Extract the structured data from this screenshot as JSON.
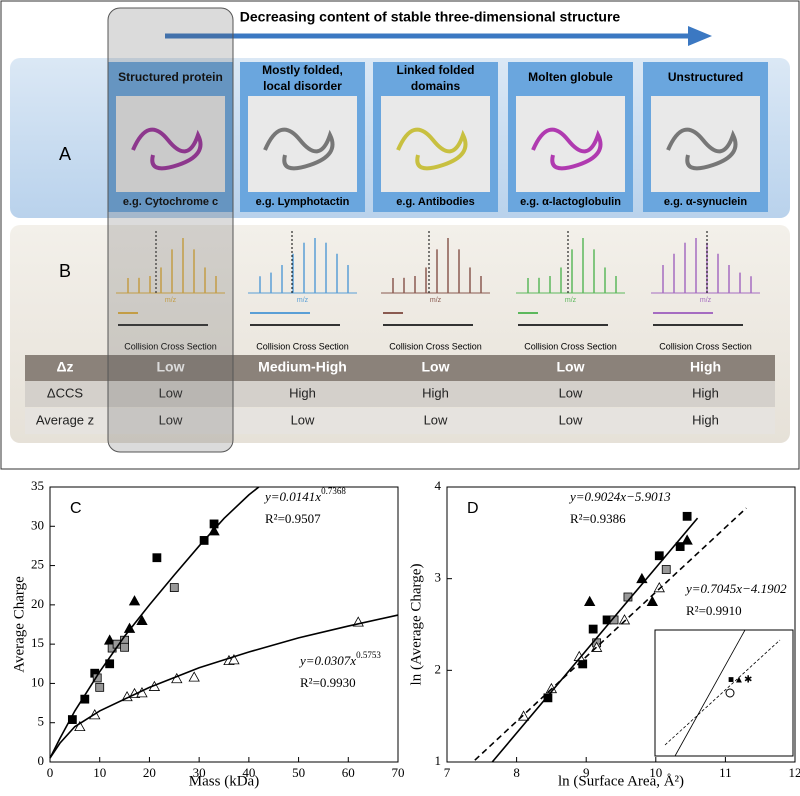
{
  "header": {
    "arrow_text": "Decreasing content of stable three-dimensional structure"
  },
  "panel_a": {
    "label": "A",
    "columns": [
      {
        "title": "Structured protein",
        "example": "e.g. Cytochrome c"
      },
      {
        "title": "Mostly folded, local disorder",
        "example": "e.g. Lymphotactin"
      },
      {
        "title": "Linked folded domains",
        "example": "e.g. Antibodies"
      },
      {
        "title": "Molten globule",
        "example": "e.g. α-lactoglobulin"
      },
      {
        "title": "Unstructured",
        "example": "e.g. α-synuclein"
      }
    ]
  },
  "panel_b": {
    "label": "B",
    "spectrum_axis": "m/z",
    "ccs_label": "Collision Cross Section"
  },
  "table": {
    "rows": [
      [
        "Δz",
        "Low",
        "Medium-High",
        "Low",
        "Low",
        "High"
      ],
      [
        "ΔCCS",
        "Low",
        "High",
        "High",
        "Low",
        "High"
      ],
      [
        "Average z",
        "Low",
        "Low",
        "Low",
        "Low",
        "High"
      ]
    ]
  },
  "chart_data": [
    {
      "type": "scatter",
      "panel_label": "C",
      "xlabel": "Mass (kDa)",
      "ylabel": "Average Charge",
      "xlim": [
        0,
        70
      ],
      "xticks": [
        0,
        10,
        20,
        30,
        40,
        50,
        60,
        70
      ],
      "ylim": [
        0,
        35
      ],
      "yticks": [
        0,
        5,
        10,
        15,
        20,
        25,
        30,
        35
      ],
      "annotations": [
        {
          "equation": "y=0.0141x",
          "exponent": "0.7368",
          "r2": "R²=0.9507"
        },
        {
          "equation": "y=0.0307x",
          "exponent": "0.5753",
          "r2": "R²=0.9930"
        }
      ],
      "series": [
        {
          "marker": "square",
          "color": "#000000",
          "x": [
            4.5,
            7,
            9,
            12,
            21.5,
            31,
            33
          ],
          "values": [
            5.4,
            8,
            11.3,
            12.5,
            26,
            28.2,
            30.3
          ]
        },
        {
          "marker": "triangle",
          "color": "#000000",
          "x": [
            12,
            16,
            17,
            18.5,
            33
          ],
          "values": [
            15.5,
            17,
            20.5,
            18,
            29.4
          ]
        },
        {
          "marker": "square",
          "color": "#999999",
          "x": [
            9.5,
            10,
            12.5,
            13.5,
            15,
            15,
            25
          ],
          "values": [
            10.7,
            9.5,
            14.5,
            15,
            15.5,
            14.6,
            22.2
          ]
        },
        {
          "marker": "triangle",
          "color": "#ffffff",
          "x": [
            6,
            9,
            15.5,
            17,
            18.5,
            21,
            25.5,
            29,
            36,
            37,
            62
          ],
          "values": [
            4.5,
            6,
            8.3,
            8.7,
            8.8,
            9.6,
            10.6,
            10.8,
            12.9,
            13,
            17.8
          ]
        },
        {
          "marker": "line",
          "color": "#000000",
          "x": [
            0,
            2,
            5,
            10,
            15,
            20,
            25,
            30,
            35,
            40,
            42
          ],
          "values": [
            0.5,
            3,
            6.5,
            11.5,
            16,
            20,
            23.8,
            27.5,
            31,
            34,
            35
          ]
        },
        {
          "marker": "line",
          "color": "#000000",
          "x": [
            0,
            2,
            5,
            10,
            20,
            30,
            40,
            50,
            60,
            70
          ],
          "values": [
            0.5,
            2.4,
            4.5,
            6.5,
            9.5,
            12,
            14,
            15.8,
            17.3,
            18.7
          ]
        }
      ]
    },
    {
      "type": "scatter",
      "panel_label": "D",
      "xlabel": "ln (Surface Area, Å²)",
      "ylabel": "ln (Average Charge)",
      "xlim": [
        7,
        12
      ],
      "xticks": [
        7,
        8,
        9,
        10,
        11,
        12
      ],
      "ylim": [
        1,
        4
      ],
      "yticks": [
        1,
        2,
        3,
        4
      ],
      "annotations": [
        {
          "equation": "y=0.9024x−5.9013",
          "r2": "R²=0.9386"
        },
        {
          "equation": "y=0.7045x−4.1902",
          "r2": "R²=0.9910"
        }
      ],
      "series": [
        {
          "marker": "square",
          "color": "#000000",
          "x": [
            8.45,
            8.95,
            9.1,
            9.3,
            10.05,
            10.35,
            10.45
          ],
          "values": [
            1.7,
            2.07,
            2.45,
            2.55,
            3.25,
            3.35,
            3.68
          ]
        },
        {
          "marker": "triangle",
          "color": "#000000",
          "x": [
            9.05,
            9.8,
            9.95,
            10.45
          ],
          "values": [
            2.75,
            3.0,
            2.75,
            3.42
          ]
        },
        {
          "marker": "square",
          "color": "#999999",
          "x": [
            9.15,
            9.4,
            9.6,
            10.15
          ],
          "values": [
            2.3,
            2.55,
            2.8,
            3.1
          ]
        },
        {
          "marker": "triangle",
          "color": "#ffffff",
          "x": [
            8.1,
            8.5,
            8.9,
            9.15,
            9.55,
            10.05
          ],
          "values": [
            1.5,
            1.8,
            2.15,
            2.25,
            2.55,
            2.9
          ]
        },
        {
          "marker": "line",
          "color": "#000000",
          "x": [
            7.65,
            10.6
          ],
          "values": [
            1.0,
            3.66
          ]
        },
        {
          "marker": "dash",
          "color": "#000000",
          "x": [
            7.4,
            11.3
          ],
          "values": [
            1.02,
            3.77
          ]
        }
      ]
    }
  ]
}
